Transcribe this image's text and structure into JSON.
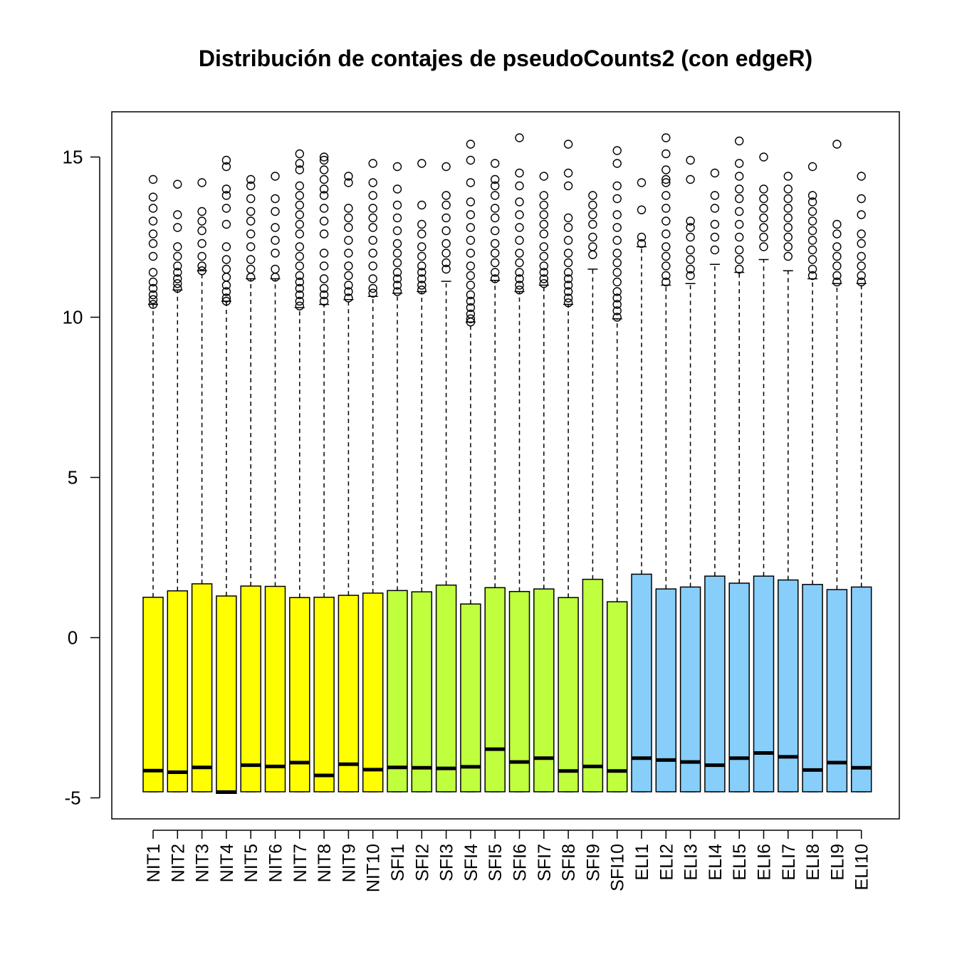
{
  "chart_data": {
    "type": "boxplot",
    "title": "Distribución de contajes de pseudoCounts2 (con edgeR)",
    "xlabel": "",
    "ylabel": "",
    "ylim": [
      -5.6,
      16.5
    ],
    "yticks": [
      -5,
      0,
      5,
      10,
      15
    ],
    "grid": false,
    "legend": "none",
    "group_colors": {
      "NIT": "#ffff00",
      "SFI": "#c0ff3e",
      "ELI": "#87cefa"
    },
    "categories": [
      "NIT1",
      "NIT2",
      "NIT3",
      "NIT4",
      "NIT5",
      "NIT6",
      "NIT7",
      "NIT8",
      "NIT9",
      "NIT10",
      "SFI1",
      "SFI2",
      "SFI3",
      "SFI4",
      "SFI5",
      "SFI6",
      "SFI7",
      "SFI8",
      "SFI9",
      "SFI10",
      "ELI1",
      "ELI2",
      "ELI3",
      "ELI4",
      "ELI5",
      "ELI6",
      "ELI7",
      "ELI8",
      "ELI9",
      "ELI10"
    ],
    "groups": [
      "NIT",
      "NIT",
      "NIT",
      "NIT",
      "NIT",
      "NIT",
      "NIT",
      "NIT",
      "NIT",
      "NIT",
      "SFI",
      "SFI",
      "SFI",
      "SFI",
      "SFI",
      "SFI",
      "SFI",
      "SFI",
      "SFI",
      "SFI",
      "ELI",
      "ELI",
      "ELI",
      "ELI",
      "ELI",
      "ELI",
      "ELI",
      "ELI",
      "ELI",
      "ELI"
    ],
    "lower_whisker": [
      -4.81,
      -4.81,
      -4.81,
      -4.86,
      -4.81,
      -4.81,
      -4.81,
      -4.81,
      -4.81,
      -4.81,
      -4.81,
      -4.81,
      -4.81,
      -4.81,
      -4.81,
      -4.81,
      -4.81,
      -4.81,
      -4.81,
      -4.81,
      -4.81,
      -4.81,
      -4.81,
      -4.81,
      -4.81,
      -4.81,
      -4.81,
      -4.81,
      -4.81,
      -4.81
    ],
    "q1": [
      -4.81,
      -4.81,
      -4.81,
      -4.86,
      -4.81,
      -4.81,
      -4.81,
      -4.81,
      -4.81,
      -4.81,
      -4.81,
      -4.81,
      -4.81,
      -4.81,
      -4.81,
      -4.81,
      -4.81,
      -4.81,
      -4.81,
      -4.81,
      -4.81,
      -4.81,
      -4.81,
      -4.81,
      -4.81,
      -4.81,
      -4.81,
      -4.81,
      -4.81,
      -4.81
    ],
    "median": [
      -4.15,
      -4.2,
      -4.05,
      -4.82,
      -3.98,
      -4.02,
      -3.9,
      -4.3,
      -3.95,
      -4.12,
      -4.05,
      -4.06,
      -4.08,
      -4.03,
      -3.48,
      -3.88,
      -3.76,
      -4.16,
      -4.02,
      -4.16,
      -3.76,
      -3.82,
      -3.88,
      -3.98,
      -3.76,
      -3.6,
      -3.72,
      -4.13,
      -3.9,
      -4.06
    ],
    "q3": [
      1.26,
      1.46,
      1.68,
      1.3,
      1.61,
      1.6,
      1.25,
      1.26,
      1.32,
      1.39,
      1.47,
      1.43,
      1.64,
      1.05,
      1.56,
      1.44,
      1.52,
      1.25,
      1.82,
      1.12,
      1.98,
      1.52,
      1.58,
      1.92,
      1.7,
      1.92,
      1.8,
      1.66,
      1.5,
      1.58
    ],
    "upper_whisker": [
      10.4,
      10.85,
      11.45,
      10.5,
      11.2,
      11.2,
      10.3,
      10.4,
      10.55,
      10.65,
      10.75,
      10.8,
      11.12,
      9.85,
      11.15,
      10.8,
      11,
      10.4,
      11.5,
      9.95,
      12.2,
      11,
      11.05,
      11.65,
      11.4,
      11.8,
      11.45,
      11.2,
      11.05,
      11.05
    ],
    "outliers": [
      [
        10.4,
        10.55,
        10.7,
        10.9,
        11.1,
        11.4,
        11.9,
        12.3,
        12.6,
        13,
        13.4,
        13.75,
        14.3
      ],
      [
        10.9,
        11.05,
        11.2,
        11.4,
        11.6,
        11.9,
        12.2,
        12.8,
        13.2,
        14.15
      ],
      [
        11.45,
        11.6,
        11.9,
        12.3,
        12.7,
        13,
        13.3,
        14.2
      ],
      [
        10.5,
        10.6,
        10.8,
        11,
        11.25,
        11.5,
        11.8,
        12.2,
        12.9,
        13.4,
        13.8,
        14,
        14.7,
        14.9
      ],
      [
        11.25,
        11.5,
        11.8,
        12.2,
        12.6,
        13,
        13.3,
        13.7,
        14.1,
        14.3
      ],
      [
        11.25,
        11.5,
        12,
        12.4,
        12.8,
        13.3,
        13.7,
        14.4
      ],
      [
        10.35,
        10.5,
        10.7,
        10.9,
        11.1,
        11.3,
        11.6,
        11.9,
        12.2,
        12.6,
        12.9,
        13.2,
        13.5,
        13.8,
        14.1,
        14.6,
        14.8,
        15.1
      ],
      [
        10.5,
        10.7,
        10.9,
        11.2,
        11.6,
        12,
        12.6,
        13,
        13.4,
        13.8,
        14,
        14.3,
        14.6,
        14.9,
        15
      ],
      [
        10.6,
        10.8,
        11,
        11.3,
        11.6,
        12,
        12.4,
        12.8,
        13.1,
        13.4,
        14.2,
        14.4
      ],
      [
        10.75,
        10.9,
        11.2,
        11.6,
        12,
        12.4,
        12.8,
        13.1,
        13.4,
        13.8,
        14.2,
        14.8
      ],
      [
        10.8,
        11,
        11.2,
        11.4,
        11.7,
        12,
        12.3,
        12.7,
        13.1,
        13.5,
        14,
        14.7
      ],
      [
        10.85,
        11,
        11.2,
        11.4,
        11.6,
        11.9,
        12.2,
        12.6,
        12.9,
        13.5,
        14.8
      ],
      [
        11.5,
        11.7,
        12,
        12.3,
        12.7,
        13.1,
        13.5,
        13.8,
        14.7
      ],
      [
        9.85,
        9.95,
        10.1,
        10.3,
        10.5,
        10.7,
        11,
        11.3,
        11.6,
        12,
        12.4,
        12.8,
        13.2,
        13.6,
        14.2,
        14.9,
        15.4
      ],
      [
        11.2,
        11.4,
        11.7,
        12,
        12.3,
        12.7,
        13.1,
        13.4,
        13.8,
        14.1,
        14.3,
        14.8
      ],
      [
        10.85,
        11,
        11.2,
        11.4,
        11.7,
        12,
        12.4,
        12.8,
        13.2,
        13.6,
        14.1,
        14.5,
        15.6
      ],
      [
        11.05,
        11.2,
        11.4,
        11.6,
        11.9,
        12.2,
        12.6,
        12.9,
        13.2,
        13.5,
        13.8,
        14.4
      ],
      [
        10.45,
        10.6,
        10.8,
        11,
        11.2,
        11.4,
        11.7,
        12,
        12.4,
        12.8,
        13.1,
        14.1,
        14.5,
        15.4
      ],
      [
        11.95,
        12.2,
        12.5,
        12.9,
        13.2,
        13.5,
        13.8
      ],
      [
        10,
        10.2,
        10.4,
        10.6,
        10.8,
        11.1,
        11.4,
        11.7,
        12,
        12.4,
        12.8,
        13.2,
        13.7,
        14.1,
        14.8,
        15.2
      ],
      [
        12.3,
        12.5,
        13.35,
        14.2
      ],
      [
        11.1,
        11.3,
        11.6,
        11.9,
        12.2,
        12.6,
        13,
        13.4,
        13.8,
        14.2,
        14.3,
        14.6,
        15.1,
        15.6
      ],
      [
        11.3,
        11.5,
        11.8,
        12.1,
        12.5,
        12.8,
        13,
        14.3,
        14.9
      ],
      [
        12.1,
        12.5,
        12.9,
        13.4,
        13.8,
        14.5
      ],
      [
        11.5,
        11.8,
        12.1,
        12.5,
        12.9,
        13.3,
        13.7,
        14,
        14.4,
        14.8,
        15.5
      ],
      [
        12.2,
        12.5,
        12.8,
        13.1,
        13.4,
        13.7,
        14,
        15
      ],
      [
        11.9,
        12.2,
        12.5,
        12.8,
        13.1,
        13.4,
        13.7,
        14,
        14.4
      ],
      [
        11.3,
        11.5,
        11.8,
        12.1,
        12.4,
        12.7,
        13,
        13.3,
        13.6,
        13.8,
        14.7
      ],
      [
        11.1,
        11.3,
        11.6,
        11.9,
        12.2,
        12.6,
        12.9,
        15.4
      ],
      [
        11.1,
        11.3,
        11.6,
        11.9,
        12.3,
        12.6,
        13.2,
        13.7,
        14.4
      ]
    ]
  }
}
